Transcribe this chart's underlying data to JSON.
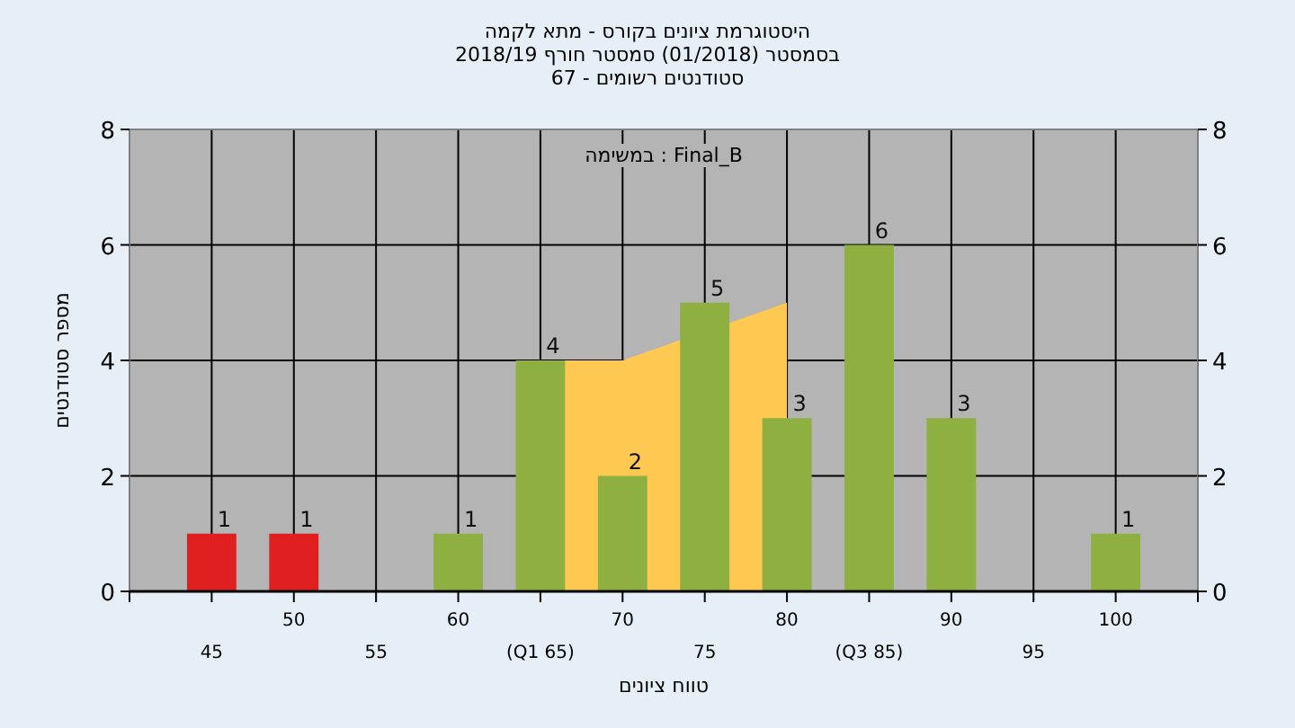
{
  "chart_data": {
    "type": "bar",
    "title": "היסטוגרמת ציונים בקורס - מתא לקמה",
    "subtitle": "בסמסטר  (01/2018)  סמסטר חורף 2018/19\nסטודנטים רשומים - 67",
    "xlabel": "טווח ציונים",
    "ylabel": "מספר סטודנטים",
    "annotations": [
      "Final_B : במשימה"
    ],
    "categories": [
      "45",
      "50",
      "55",
      "60",
      "(Q1 65)",
      "70",
      "75",
      "80",
      "(Q3 85)",
      "90",
      "95",
      "100"
    ],
    "series": [
      {
        "type": "area",
        "color": "#ffc850",
        "values": [
          null,
          null,
          null,
          null,
          4,
          4,
          null,
          5,
          null,
          null,
          null,
          null
        ]
      },
      {
        "colors": [
          "#e02020",
          "#e02020",
          "#8db040",
          "#8db040",
          "#8db040",
          "#8db040",
          "#8db040",
          "#8db040",
          "#8db040",
          "#8db040",
          "#8db040",
          "#8db040"
        ],
        "values": [
          1,
          1,
          0,
          1,
          4,
          2,
          5,
          3,
          6,
          3,
          0,
          1
        ],
        "value_labels": [
          "1",
          "1",
          null,
          "1",
          "4",
          "2",
          "5",
          "3",
          "6",
          "3",
          null,
          "1"
        ]
      }
    ],
    "ylim": [
      0,
      8
    ],
    "yticks": [
      0,
      2,
      4,
      6,
      8
    ],
    "y2lim": [
      0,
      8
    ],
    "y2ticks": [
      0,
      2,
      4,
      6,
      8
    ],
    "grid": true
  }
}
